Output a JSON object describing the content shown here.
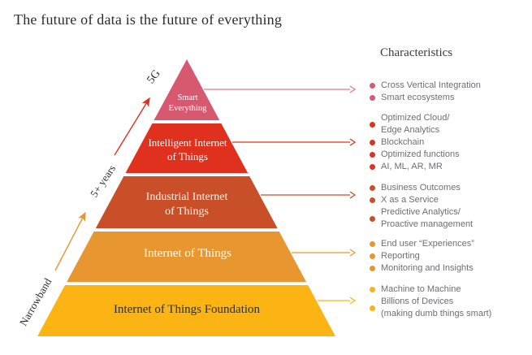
{
  "title": "The future of data is the future of everything",
  "characteristics": {
    "header": "Characteristics",
    "groups": [
      {
        "color": "#D6596F",
        "items": [
          "Cross Vertical Integration",
          "Smart ecosystems"
        ]
      },
      {
        "color": "#E0301E",
        "items": [
          "Optimized Cloud/\nEdge Analytics",
          "Blockchain",
          "Optimized functions",
          "AI, ML, AR, MR"
        ]
      },
      {
        "color": "#C94F28",
        "items": [
          "Business Outcomes",
          "X as a Service",
          "Predictive Analytics/\nProactive management"
        ]
      },
      {
        "color": "#E8962F",
        "items": [
          "End user “Experiences”",
          "Reporting",
          "Monitoring and Insights"
        ]
      },
      {
        "color": "#FCB415",
        "items": [
          "Machine to Machine",
          "Billions of Devices\n(making dumb things smart)"
        ]
      }
    ]
  },
  "pyramid": {
    "layers": [
      {
        "name": "smart-everything",
        "label": "Smart\nEverything",
        "color": "#D6596F",
        "text_color": "#ffffff"
      },
      {
        "name": "intelligent-internet-of-things",
        "label": "Intelligent Internet\nof Things",
        "color": "#E0301E",
        "text_color": "#ffffff"
      },
      {
        "name": "industrial-internet-of-things",
        "label": "Industrial Internet\nof Things",
        "color": "#C94F28",
        "text_color": "#faf3ec"
      },
      {
        "name": "internet-of-things",
        "label": "Internet of Things",
        "color": "#E8962F",
        "text_color": "#ffffff"
      },
      {
        "name": "internet-of-things-foundation",
        "label": "Internet of Things Foundation",
        "color": "#FCB415",
        "text_color": "#332f28"
      }
    ]
  },
  "axis": {
    "narrowband": "Narrowband",
    "mid": "5+ years",
    "top": "5G",
    "lower_arrow_color": "#E8962F",
    "upper_arrow_color": "#E0301E"
  }
}
